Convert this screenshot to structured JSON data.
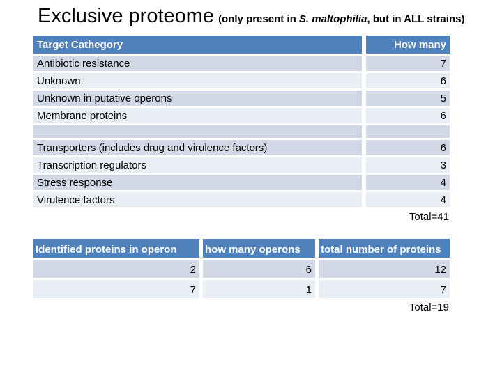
{
  "title": {
    "main": "Exclusive proteome",
    "subtitle_prefix": "(only present in ",
    "subtitle_italic": "S. maltophilia",
    "subtitle_suffix": ", but in ALL strains)"
  },
  "colors": {
    "header_blue": "#4F81BD",
    "band_dark": "#D2D8E6",
    "band_light": "#E9EDF4"
  },
  "table1": {
    "headers": [
      "Target Cathegory",
      "How many"
    ],
    "group1": [
      {
        "label": "Antibiotic resistance",
        "value": "7"
      },
      {
        "label": "Unknown",
        "value": "6"
      },
      {
        "label": "Unknown in putative operons",
        "value": "5"
      },
      {
        "label": "Membrane proteins",
        "value": "6"
      }
    ],
    "group2": [
      {
        "label": "Transporters (includes drug and virulence factors)",
        "value": "6"
      },
      {
        "label": "Transcription regulators",
        "value": "3"
      },
      {
        "label": "Stress response",
        "value": "4"
      },
      {
        "label": "Virulence factors",
        "value": "4"
      }
    ],
    "total": "Total=41"
  },
  "table2": {
    "headers": [
      "Identified proteins in operon",
      "how many operons",
      "total number of proteins"
    ],
    "rows": [
      [
        "2",
        "6",
        "12"
      ],
      [
        "7",
        "1",
        "7"
      ]
    ],
    "total": "Total=19"
  }
}
